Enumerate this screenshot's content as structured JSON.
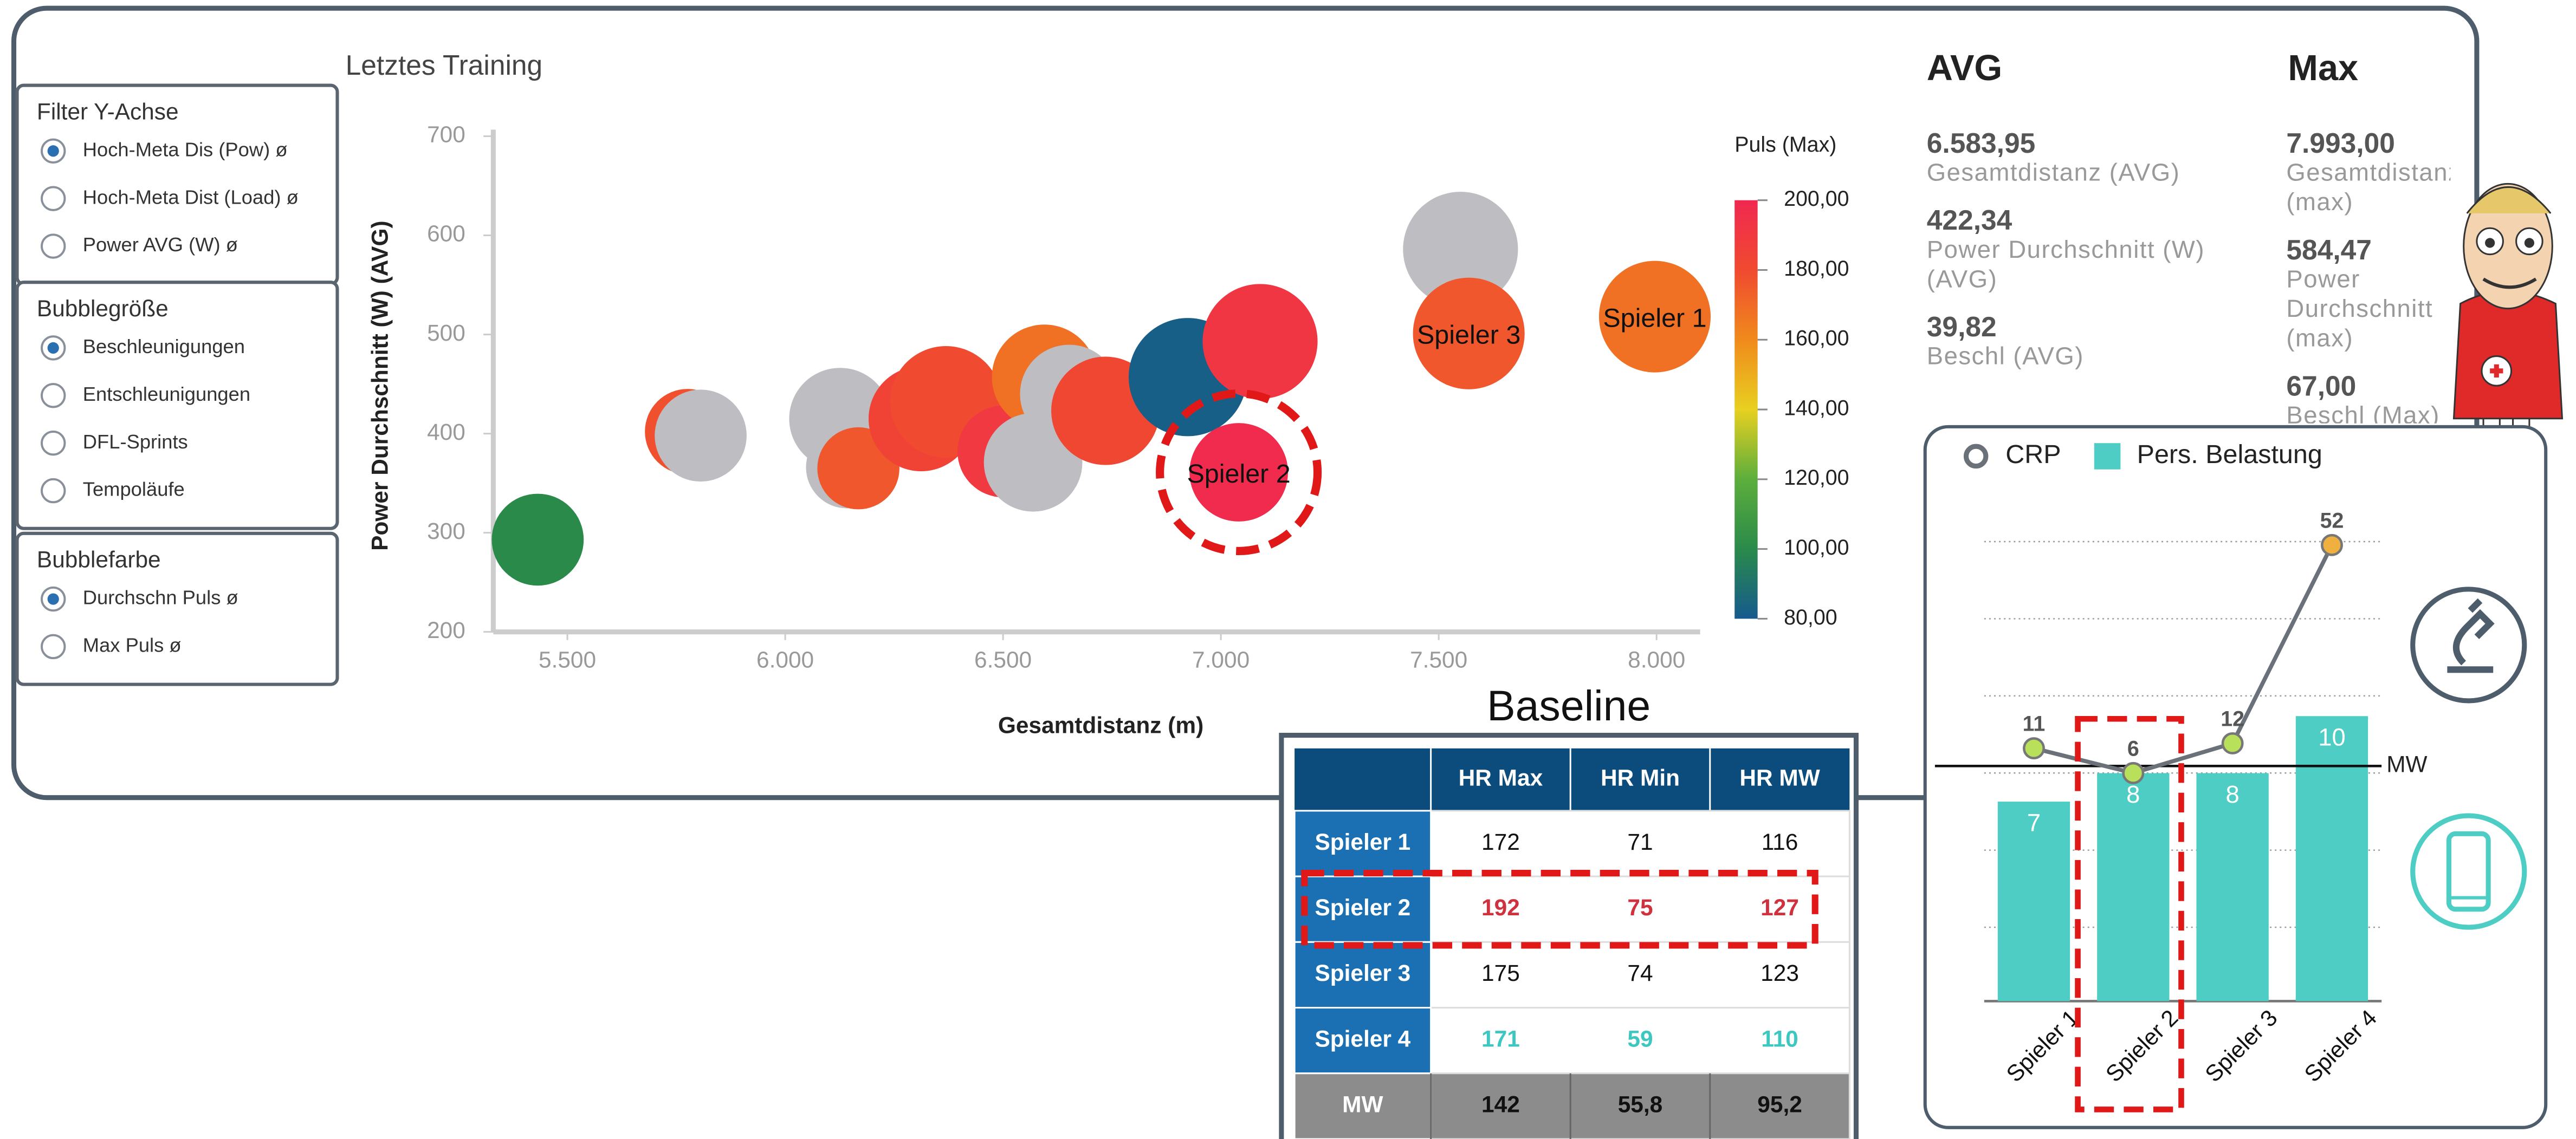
{
  "filters": [
    {
      "title": "Filter Y-Achse",
      "options": [
        "Hoch-Meta Dis (Pow) ø",
        "Hoch-Meta Dist (Load) ø",
        "Power AVG (W) ø"
      ],
      "selected": 0
    },
    {
      "title": "Bubblegröße",
      "options": [
        "Beschleunigungen",
        "Entschleunigungen",
        "DFL-Sprints",
        "Tempoläufe"
      ],
      "selected": 0
    },
    {
      "title": "Bubblefarbe",
      "options": [
        "Durchschn Puls ø",
        "Max Puls ø"
      ],
      "selected": 0
    }
  ],
  "chart_data": [
    {
      "type": "bubble",
      "title": "Letztes Training",
      "x_label": "Gesamtdistanz (m)",
      "y_label": "Power Durchschnitt (W) (AVG)",
      "xlim": [
        5330,
        8100
      ],
      "ylim": [
        200,
        700
      ],
      "xticks": [
        {
          "value": 5500,
          "label": "5.500"
        },
        {
          "value": 6000,
          "label": "6.000"
        },
        {
          "value": 6500,
          "label": "6.500"
        },
        {
          "value": 7000,
          "label": "7.000"
        },
        {
          "value": 7500,
          "label": "7.500"
        },
        {
          "value": 8000,
          "label": "8.000"
        }
      ],
      "yticks": [
        200,
        300,
        400,
        500,
        600,
        700
      ],
      "x": [
        5432,
        5776,
        5806,
        6126,
        6142,
        6168,
        6312,
        6369,
        6501,
        6595,
        6652,
        6569,
        6735,
        6924,
        7090,
        7041,
        7550,
        7569,
        7996
      ],
      "values": [
        293,
        402,
        398,
        415,
        366,
        365,
        415,
        432,
        382,
        457,
        440,
        371,
        423,
        457,
        493,
        361,
        586,
        501,
        518
      ],
      "sizes": [
        28,
        26,
        28,
        31,
        25,
        25,
        32,
        34,
        28,
        32,
        30,
        30,
        33,
        36,
        35,
        30,
        35,
        34,
        34
      ],
      "color_values": [
        100,
        178,
        null,
        null,
        null,
        176,
        184,
        180,
        190,
        168,
        null,
        null,
        182,
        82,
        192,
        198,
        null,
        176,
        168
      ],
      "null_color": "#bdbdc2",
      "colorbar": {
        "title": "Puls (Max)",
        "lim": [
          80,
          200
        ],
        "ticks": [
          {
            "value": 80,
            "label": "80,00"
          },
          {
            "value": 100,
            "label": "100,00"
          },
          {
            "value": 120,
            "label": "120,00"
          },
          {
            "value": 140,
            "label": "140,00"
          },
          {
            "value": 160,
            "label": "160,00"
          },
          {
            "value": 180,
            "label": "180,00"
          },
          {
            "value": 200,
            "label": "200,00"
          }
        ],
        "stops": [
          "#165a8e",
          "#2a8a4a",
          "#5cae3c",
          "#e8d020",
          "#f08a1c",
          "#f04a30",
          "#f02850"
        ]
      },
      "annotations": [
        {
          "text": "Spieler 2",
          "point": 15
        },
        {
          "text": "Spieler 3",
          "point": 17
        },
        {
          "text": "Spieler 1",
          "point": 18
        }
      ]
    },
    {
      "type": "bar_line",
      "categories": [
        "Spieler 1",
        "Spieler 2",
        "Spieler 3",
        "Spieler 4"
      ],
      "ylim": [
        0,
        16.7
      ],
      "y2lim": [
        -40,
        56
      ],
      "series": [
        {
          "name": "CRP",
          "type": "line",
          "axis": "y2",
          "color": "#6b7178",
          "values": [
            11,
            6,
            12,
            52
          ],
          "marker_colors": [
            "#b8e05a",
            "#b8e05a",
            "#b8e05a",
            "#f0b040"
          ]
        },
        {
          "name": "Pers. Belastung",
          "type": "bar",
          "color": "#4ecdc4",
          "values": [
            7,
            8,
            8,
            10
          ]
        }
      ],
      "reference_line": {
        "label": "MW",
        "value": 8.25
      }
    }
  ],
  "kpis": {
    "avg_header": "AVG",
    "max_header": "Max",
    "avg": [
      {
        "value": "6.583,95",
        "label": "Gesamtdistanz (AVG)"
      },
      {
        "value": "422,34",
        "label": "Power Durchschnitt (W) (AVG)"
      },
      {
        "value": "39,82",
        "label": "Beschl (AVG)"
      }
    ],
    "max": [
      {
        "value": "7.993,00",
        "label": "Gesamtdistanz (max)"
      },
      {
        "value": "584,47",
        "label": "Power Durchschnitt (max)"
      },
      {
        "value": "67,00",
        "label": "Beschl (Max)"
      }
    ]
  },
  "baseline_table": {
    "title": "Baseline",
    "columns": [
      "HR Max",
      "HR Min",
      "HR MW"
    ],
    "rows": [
      {
        "label": "Spieler 1",
        "cells": [
          "172",
          "71",
          "116"
        ]
      },
      {
        "label": "Spieler 2",
        "cells": [
          "192",
          "75",
          "127"
        ],
        "color": "#d0313f"
      },
      {
        "label": "Spieler 3",
        "cells": [
          "175",
          "74",
          "123"
        ]
      },
      {
        "label": "Spieler 4",
        "cells": [
          "171",
          "59",
          "110"
        ],
        "color": "#3cc8c0"
      }
    ],
    "footer": {
      "label": "MW",
      "cells": [
        "142",
        "55,8",
        "95,2"
      ]
    }
  }
}
